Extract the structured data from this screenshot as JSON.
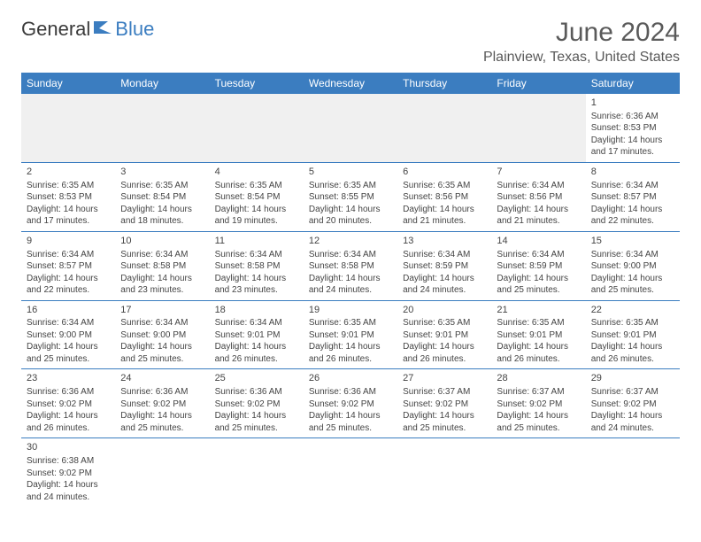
{
  "logo": {
    "general": "General",
    "blue": "Blue"
  },
  "header": {
    "title": "June 2024",
    "location": "Plainview, Texas, United States"
  },
  "colors": {
    "header_bg": "#3b7dc0",
    "header_text": "#ffffff",
    "border": "#3b7dc0",
    "empty_bg": "#f0f0f0",
    "text": "#444444",
    "title_text": "#5a5a5a"
  },
  "dayNames": [
    "Sunday",
    "Monday",
    "Tuesday",
    "Wednesday",
    "Thursday",
    "Friday",
    "Saturday"
  ],
  "weeks": [
    [
      {
        "empty": true
      },
      {
        "empty": true
      },
      {
        "empty": true
      },
      {
        "empty": true
      },
      {
        "empty": true
      },
      {
        "empty": true
      },
      {
        "day": "1",
        "sunrise": "Sunrise: 6:36 AM",
        "sunset": "Sunset: 8:53 PM",
        "daylight1": "Daylight: 14 hours",
        "daylight2": "and 17 minutes."
      }
    ],
    [
      {
        "day": "2",
        "sunrise": "Sunrise: 6:35 AM",
        "sunset": "Sunset: 8:53 PM",
        "daylight1": "Daylight: 14 hours",
        "daylight2": "and 17 minutes."
      },
      {
        "day": "3",
        "sunrise": "Sunrise: 6:35 AM",
        "sunset": "Sunset: 8:54 PM",
        "daylight1": "Daylight: 14 hours",
        "daylight2": "and 18 minutes."
      },
      {
        "day": "4",
        "sunrise": "Sunrise: 6:35 AM",
        "sunset": "Sunset: 8:54 PM",
        "daylight1": "Daylight: 14 hours",
        "daylight2": "and 19 minutes."
      },
      {
        "day": "5",
        "sunrise": "Sunrise: 6:35 AM",
        "sunset": "Sunset: 8:55 PM",
        "daylight1": "Daylight: 14 hours",
        "daylight2": "and 20 minutes."
      },
      {
        "day": "6",
        "sunrise": "Sunrise: 6:35 AM",
        "sunset": "Sunset: 8:56 PM",
        "daylight1": "Daylight: 14 hours",
        "daylight2": "and 21 minutes."
      },
      {
        "day": "7",
        "sunrise": "Sunrise: 6:34 AM",
        "sunset": "Sunset: 8:56 PM",
        "daylight1": "Daylight: 14 hours",
        "daylight2": "and 21 minutes."
      },
      {
        "day": "8",
        "sunrise": "Sunrise: 6:34 AM",
        "sunset": "Sunset: 8:57 PM",
        "daylight1": "Daylight: 14 hours",
        "daylight2": "and 22 minutes."
      }
    ],
    [
      {
        "day": "9",
        "sunrise": "Sunrise: 6:34 AM",
        "sunset": "Sunset: 8:57 PM",
        "daylight1": "Daylight: 14 hours",
        "daylight2": "and 22 minutes."
      },
      {
        "day": "10",
        "sunrise": "Sunrise: 6:34 AM",
        "sunset": "Sunset: 8:58 PM",
        "daylight1": "Daylight: 14 hours",
        "daylight2": "and 23 minutes."
      },
      {
        "day": "11",
        "sunrise": "Sunrise: 6:34 AM",
        "sunset": "Sunset: 8:58 PM",
        "daylight1": "Daylight: 14 hours",
        "daylight2": "and 23 minutes."
      },
      {
        "day": "12",
        "sunrise": "Sunrise: 6:34 AM",
        "sunset": "Sunset: 8:58 PM",
        "daylight1": "Daylight: 14 hours",
        "daylight2": "and 24 minutes."
      },
      {
        "day": "13",
        "sunrise": "Sunrise: 6:34 AM",
        "sunset": "Sunset: 8:59 PM",
        "daylight1": "Daylight: 14 hours",
        "daylight2": "and 24 minutes."
      },
      {
        "day": "14",
        "sunrise": "Sunrise: 6:34 AM",
        "sunset": "Sunset: 8:59 PM",
        "daylight1": "Daylight: 14 hours",
        "daylight2": "and 25 minutes."
      },
      {
        "day": "15",
        "sunrise": "Sunrise: 6:34 AM",
        "sunset": "Sunset: 9:00 PM",
        "daylight1": "Daylight: 14 hours",
        "daylight2": "and 25 minutes."
      }
    ],
    [
      {
        "day": "16",
        "sunrise": "Sunrise: 6:34 AM",
        "sunset": "Sunset: 9:00 PM",
        "daylight1": "Daylight: 14 hours",
        "daylight2": "and 25 minutes."
      },
      {
        "day": "17",
        "sunrise": "Sunrise: 6:34 AM",
        "sunset": "Sunset: 9:00 PM",
        "daylight1": "Daylight: 14 hours",
        "daylight2": "and 25 minutes."
      },
      {
        "day": "18",
        "sunrise": "Sunrise: 6:34 AM",
        "sunset": "Sunset: 9:01 PM",
        "daylight1": "Daylight: 14 hours",
        "daylight2": "and 26 minutes."
      },
      {
        "day": "19",
        "sunrise": "Sunrise: 6:35 AM",
        "sunset": "Sunset: 9:01 PM",
        "daylight1": "Daylight: 14 hours",
        "daylight2": "and 26 minutes."
      },
      {
        "day": "20",
        "sunrise": "Sunrise: 6:35 AM",
        "sunset": "Sunset: 9:01 PM",
        "daylight1": "Daylight: 14 hours",
        "daylight2": "and 26 minutes."
      },
      {
        "day": "21",
        "sunrise": "Sunrise: 6:35 AM",
        "sunset": "Sunset: 9:01 PM",
        "daylight1": "Daylight: 14 hours",
        "daylight2": "and 26 minutes."
      },
      {
        "day": "22",
        "sunrise": "Sunrise: 6:35 AM",
        "sunset": "Sunset: 9:01 PM",
        "daylight1": "Daylight: 14 hours",
        "daylight2": "and 26 minutes."
      }
    ],
    [
      {
        "day": "23",
        "sunrise": "Sunrise: 6:36 AM",
        "sunset": "Sunset: 9:02 PM",
        "daylight1": "Daylight: 14 hours",
        "daylight2": "and 26 minutes."
      },
      {
        "day": "24",
        "sunrise": "Sunrise: 6:36 AM",
        "sunset": "Sunset: 9:02 PM",
        "daylight1": "Daylight: 14 hours",
        "daylight2": "and 25 minutes."
      },
      {
        "day": "25",
        "sunrise": "Sunrise: 6:36 AM",
        "sunset": "Sunset: 9:02 PM",
        "daylight1": "Daylight: 14 hours",
        "daylight2": "and 25 minutes."
      },
      {
        "day": "26",
        "sunrise": "Sunrise: 6:36 AM",
        "sunset": "Sunset: 9:02 PM",
        "daylight1": "Daylight: 14 hours",
        "daylight2": "and 25 minutes."
      },
      {
        "day": "27",
        "sunrise": "Sunrise: 6:37 AM",
        "sunset": "Sunset: 9:02 PM",
        "daylight1": "Daylight: 14 hours",
        "daylight2": "and 25 minutes."
      },
      {
        "day": "28",
        "sunrise": "Sunrise: 6:37 AM",
        "sunset": "Sunset: 9:02 PM",
        "daylight1": "Daylight: 14 hours",
        "daylight2": "and 25 minutes."
      },
      {
        "day": "29",
        "sunrise": "Sunrise: 6:37 AM",
        "sunset": "Sunset: 9:02 PM",
        "daylight1": "Daylight: 14 hours",
        "daylight2": "and 24 minutes."
      }
    ],
    [
      {
        "day": "30",
        "sunrise": "Sunrise: 6:38 AM",
        "sunset": "Sunset: 9:02 PM",
        "daylight1": "Daylight: 14 hours",
        "daylight2": "and 24 minutes.",
        "noborder": true
      },
      {
        "empty": true,
        "noborder": true
      },
      {
        "empty": true,
        "noborder": true
      },
      {
        "empty": true,
        "noborder": true
      },
      {
        "empty": true,
        "noborder": true
      },
      {
        "empty": true,
        "noborder": true
      },
      {
        "empty": true,
        "noborder": true
      }
    ]
  ]
}
